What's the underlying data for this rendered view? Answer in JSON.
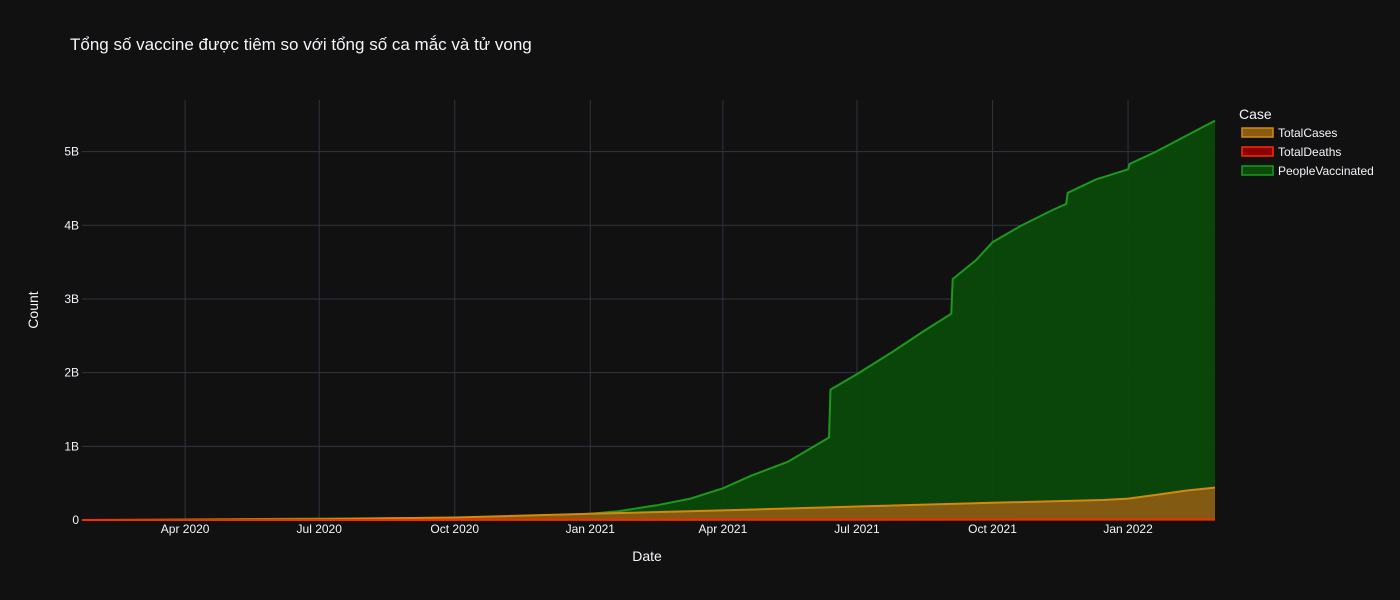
{
  "chart_data": {
    "type": "area",
    "title": "Tổng số vaccine được tiêm so với tổng số ca mắc và tử vong",
    "xlabel": "Date",
    "ylabel": "Count",
    "legend_title": "Case",
    "legend_placement": "right",
    "grid": true,
    "xlim": [
      "2020-01-22",
      "2022-03-01"
    ],
    "ylim": [
      0,
      5700000000
    ],
    "x_ticks": [
      {
        "date": "2020-04-01",
        "label": "Apr 2020"
      },
      {
        "date": "2020-07-01",
        "label": "Jul 2020"
      },
      {
        "date": "2020-10-01",
        "label": "Oct 2020"
      },
      {
        "date": "2021-01-01",
        "label": "Jan 2021"
      },
      {
        "date": "2021-04-01",
        "label": "Apr 2021"
      },
      {
        "date": "2021-07-01",
        "label": "Jul 2021"
      },
      {
        "date": "2021-10-01",
        "label": "Oct 2021"
      },
      {
        "date": "2022-01-01",
        "label": "Jan 2022"
      }
    ],
    "y_ticks": [
      {
        "value": 0,
        "label": "0"
      },
      {
        "value": 1000000000,
        "label": "1B"
      },
      {
        "value": 2000000000,
        "label": "2B"
      },
      {
        "value": 3000000000,
        "label": "3B"
      },
      {
        "value": 4000000000,
        "label": "4B"
      },
      {
        "value": 5000000000,
        "label": "5B"
      }
    ],
    "series": [
      {
        "name": "TotalCases",
        "line_color": "#d4880f",
        "fill_color": "#8a5c12",
        "points": [
          [
            "2020-01-22",
            0
          ],
          [
            "2020-04-01",
            900000
          ],
          [
            "2020-07-01",
            10500000
          ],
          [
            "2020-10-01",
            34000000
          ],
          [
            "2021-01-01",
            84000000
          ],
          [
            "2021-04-01",
            130000000
          ],
          [
            "2021-07-01",
            183000000
          ],
          [
            "2021-10-01",
            234000000
          ],
          [
            "2021-12-15",
            272000000
          ],
          [
            "2022-01-01",
            290000000
          ],
          [
            "2022-01-20",
            340000000
          ],
          [
            "2022-02-10",
            400000000
          ],
          [
            "2022-03-01",
            440000000
          ]
        ]
      },
      {
        "name": "TotalDeaths",
        "line_color": "#ff2a00",
        "fill_color": "#8b0000",
        "points": [
          [
            "2020-01-22",
            0
          ],
          [
            "2020-07-01",
            500000
          ],
          [
            "2021-01-01",
            1800000
          ],
          [
            "2021-07-01",
            4000000
          ],
          [
            "2022-01-01",
            5400000
          ],
          [
            "2022-03-01",
            6000000
          ]
        ]
      },
      {
        "name": "PeopleVaccinated",
        "line_color": "#1a9a1a",
        "fill_color": "#0b4a0b",
        "points": [
          [
            "2020-01-22",
            0
          ],
          [
            "2020-10-01",
            30000000
          ],
          [
            "2020-12-15",
            60000000
          ],
          [
            "2021-01-01",
            85000000
          ],
          [
            "2021-01-20",
            120000000
          ],
          [
            "2021-02-15",
            200000000
          ],
          [
            "2021-03-10",
            290000000
          ],
          [
            "2021-04-01",
            430000000
          ],
          [
            "2021-04-20",
            600000000
          ],
          [
            "2021-05-15",
            790000000
          ],
          [
            "2021-06-12",
            1120000000
          ],
          [
            "2021-06-13",
            1770000000
          ],
          [
            "2021-07-01",
            1980000000
          ],
          [
            "2021-07-25",
            2280000000
          ],
          [
            "2021-08-15",
            2560000000
          ],
          [
            "2021-09-03",
            2800000000
          ],
          [
            "2021-09-04",
            3270000000
          ],
          [
            "2021-09-20",
            3530000000
          ],
          [
            "2021-10-01",
            3770000000
          ],
          [
            "2021-10-20",
            3990000000
          ],
          [
            "2021-11-10",
            4200000000
          ],
          [
            "2021-11-20",
            4290000000
          ],
          [
            "2021-11-21",
            4440000000
          ],
          [
            "2021-12-10",
            4620000000
          ],
          [
            "2022-01-01",
            4760000000
          ],
          [
            "2022-01-02",
            4830000000
          ],
          [
            "2022-01-20",
            5000000000
          ],
          [
            "2022-02-10",
            5220000000
          ],
          [
            "2022-03-01",
            5420000000
          ]
        ]
      }
    ]
  }
}
